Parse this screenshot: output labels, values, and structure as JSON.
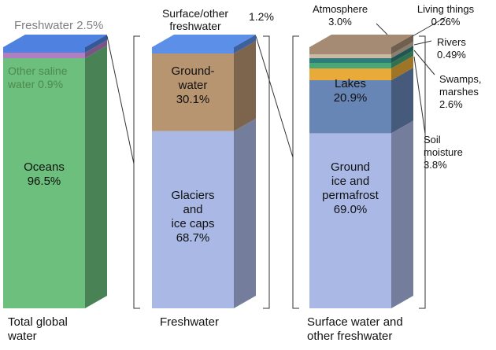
{
  "chart_data": {
    "type": "bar",
    "stacked": true,
    "bars": [
      {
        "caption": [
          "Total global",
          "water"
        ],
        "segments": [
          {
            "name": "Oceans",
            "value": 96.5,
            "label": [
              "Oceans",
              "96.5%"
            ],
            "color": "#6cbf7c",
            "label_color": "#111111"
          },
          {
            "name": "Other saline water",
            "value": 0.9,
            "label": [
              "Other saline",
              "water 0.9%"
            ],
            "color": "#b07fc0",
            "label_color": "#4e8a4c"
          },
          {
            "name": "Freshwater",
            "value": 2.5,
            "label": [
              "Freshwater 2.5%"
            ],
            "color": "#4f81e0",
            "label_color": "#7f7f7f"
          }
        ]
      },
      {
        "caption": [
          "Freshwater"
        ],
        "segments": [
          {
            "name": "Glaciers and ice caps",
            "value": 68.7,
            "label": [
              "Glaciers",
              "and",
              "ice caps",
              "68.7%"
            ],
            "color": "#aab8e6",
            "label_color": "#111111"
          },
          {
            "name": "Groundwater",
            "value": 30.1,
            "label": [
              "Ground-",
              "water",
              "30.1%"
            ],
            "color": "#b89571",
            "label_color": "#111111"
          },
          {
            "name": "Surface/other freshwater",
            "value": 1.2,
            "label": [
              "Surface/other",
              "freshwater",
              "1.2%"
            ],
            "color": "#5b8fe8",
            "label_color": "#111111"
          }
        ]
      },
      {
        "caption": [
          "Surface water and",
          "other freshwater"
        ],
        "segments": [
          {
            "name": "Ground ice and permafrost",
            "value": 69.0,
            "label": [
              "Ground",
              "ice and",
              "permafrost",
              "69.0%"
            ],
            "color": "#aab8e6",
            "label_color": "#111111"
          },
          {
            "name": "Lakes",
            "value": 20.9,
            "label": [
              "Lakes",
              "20.9%"
            ],
            "color": "#6785b5",
            "label_color": "#111111"
          },
          {
            "name": "Soil moisture",
            "value": 3.8,
            "label": [
              "Soil",
              "moisture",
              "3.8%"
            ],
            "color": "#e8aa38",
            "label_color": "#111111"
          },
          {
            "name": "Swamps, marshes",
            "value": 2.6,
            "label": [
              "Swamps,",
              "marshes",
              "2.6%"
            ],
            "color": "#48a677",
            "label_color": "#111111"
          },
          {
            "name": "Rivers",
            "value": 0.49,
            "label": [
              "Rivers",
              "0.49%"
            ],
            "color": "#2f7d78",
            "label_color": "#111111"
          },
          {
            "name": "Living things",
            "value": 0.26,
            "label": [
              "Living things",
              "0.26%"
            ],
            "color": "#c9b9a3",
            "label_color": "#111111"
          },
          {
            "name": "Atmosphere",
            "value": 3.0,
            "label": [
              "Atmosphere",
              "3.0%"
            ],
            "color": "#a58b73",
            "label_color": "#111111"
          }
        ]
      }
    ],
    "units": "%"
  }
}
